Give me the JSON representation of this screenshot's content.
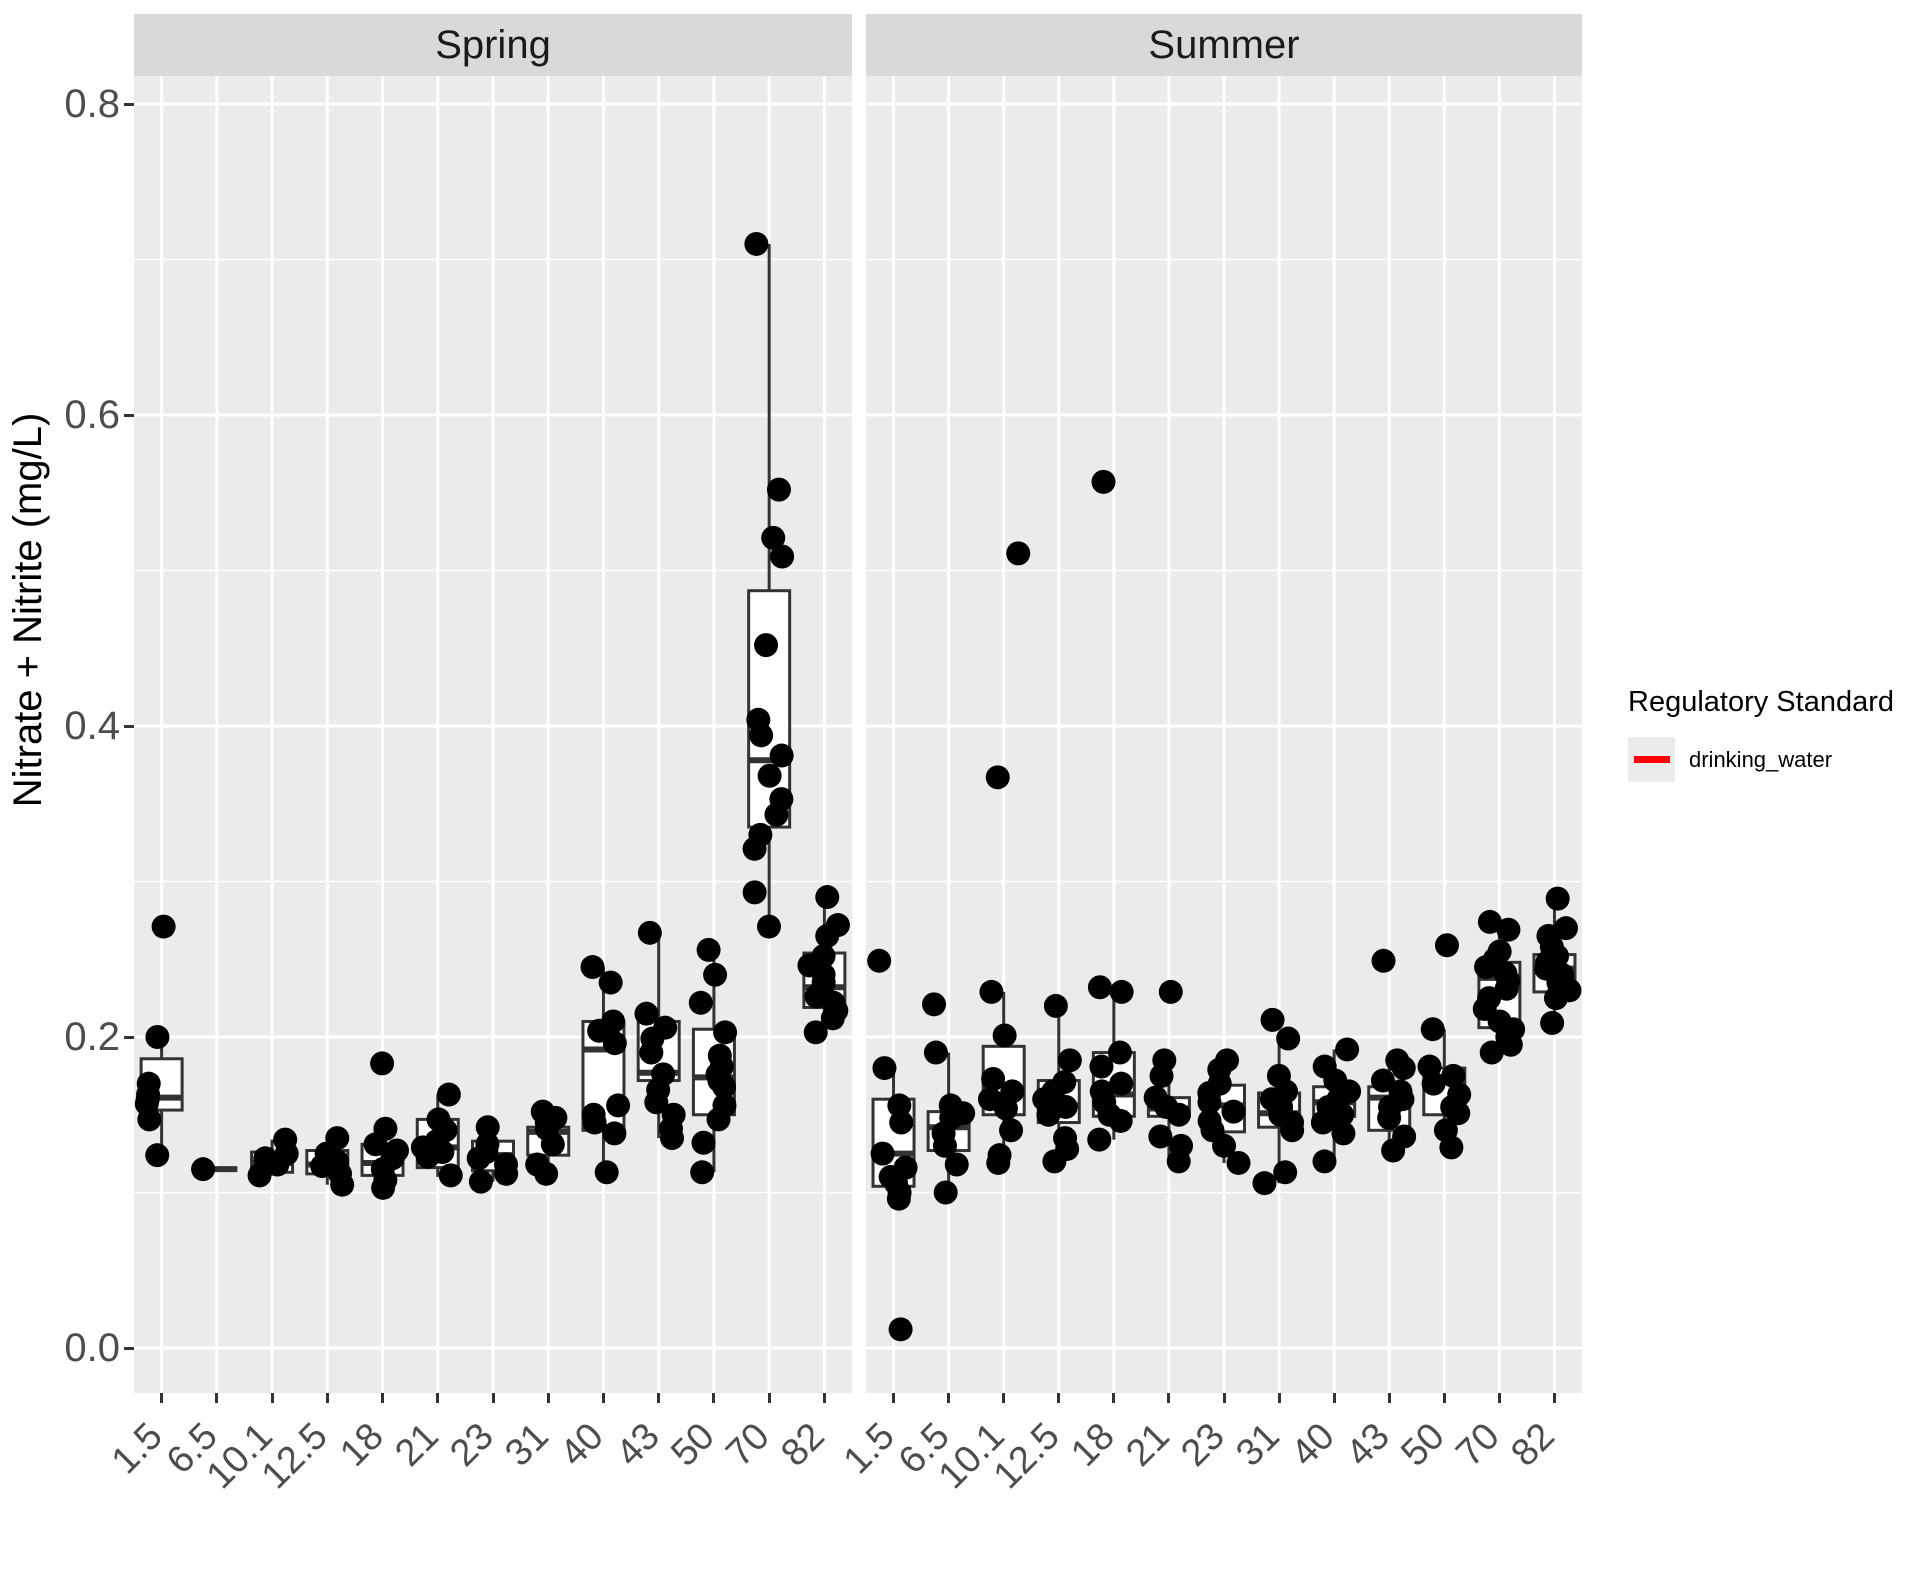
{
  "chart_data": {
    "type": "boxplot",
    "subtype": "faceted boxplot with jittered points",
    "ylabel": "Nitrate + Nitrite (mg/L)",
    "xlabel": "",
    "yticks": [
      "0.0",
      "0.2",
      "0.4",
      "0.6",
      "0.8"
    ],
    "ytick_values": [
      0.0,
      0.2,
      0.4,
      0.6,
      0.8
    ],
    "ylim": [
      -0.029,
      0.822
    ],
    "grid": "white major and minor gridlines on grey panel",
    "categories": [
      "1.5",
      "6.5",
      "10.1",
      "12.5",
      "18",
      "21",
      "23",
      "31",
      "40",
      "43",
      "50",
      "70",
      "82"
    ],
    "colors": {
      "panel_bg": "#ebebeb",
      "strip_bg": "#d9d9d9",
      "grid": "#ffffff",
      "box_fill": "#ffffff",
      "box_border": "#333333",
      "point": "#000000",
      "axis_text": "#4d4d4d",
      "tick_mark": "#333333"
    },
    "legend": {
      "title": "Regulatory Standard",
      "position": "right",
      "entries": [
        {
          "label": "drinking_water",
          "color": "#ff0000",
          "swatch": "red horizontal line"
        }
      ]
    },
    "facets": [
      {
        "label": "Spring",
        "boxes": [
          {
            "category": "1.5",
            "whisker_low": 0.124,
            "q1": 0.153,
            "median": 0.161,
            "q3": 0.186,
            "whisker_high": 0.2,
            "points": [
              0.271,
              0.2,
              0.17,
              0.163,
              0.16,
              0.157,
              0.147,
              0.124
            ]
          },
          {
            "category": "6.5",
            "whisker_low": 0.115,
            "q1": 0.115,
            "median": 0.115,
            "q3": 0.115,
            "whisker_high": 0.115,
            "points": [
              0.115
            ]
          },
          {
            "category": "10.1",
            "whisker_low": 0.111,
            "q1": 0.113,
            "median": 0.119,
            "q3": 0.126,
            "whisker_high": 0.134,
            "points": [
              0.134,
              0.125,
              0.122,
              0.118,
              0.111
            ]
          },
          {
            "category": "12.5",
            "whisker_low": 0.105,
            "q1": 0.112,
            "median": 0.118,
            "q3": 0.127,
            "whisker_high": 0.135,
            "points": [
              0.135,
              0.125,
              0.12,
              0.117,
              0.112,
              0.105
            ]
          },
          {
            "category": "18",
            "whisker_low": 0.102,
            "q1": 0.111,
            "median": 0.119,
            "q3": 0.131,
            "whisker_high": 0.142,
            "points": [
              0.183,
              0.141,
              0.131,
              0.127,
              0.122,
              0.115,
              0.108,
              0.103
            ]
          },
          {
            "category": "21",
            "whisker_low": 0.11,
            "q1": 0.116,
            "median": 0.129,
            "q3": 0.147,
            "whisker_high": 0.163,
            "points": [
              0.163,
              0.147,
              0.14,
              0.133,
              0.129,
              0.126,
              0.123,
              0.111
            ]
          },
          {
            "category": "23",
            "whisker_low": 0.107,
            "q1": 0.114,
            "median": 0.124,
            "q3": 0.133,
            "whisker_high": 0.142,
            "points": [
              0.142,
              0.131,
              0.126,
              0.122,
              0.118,
              0.112,
              0.107
            ]
          },
          {
            "category": "31",
            "whisker_low": 0.112,
            "q1": 0.124,
            "median": 0.139,
            "q3": 0.142,
            "whisker_high": 0.152,
            "points": [
              0.152,
              0.148,
              0.145,
              0.141,
              0.131,
              0.118,
              0.112
            ]
          },
          {
            "category": "40",
            "whisker_low": 0.113,
            "q1": 0.14,
            "median": 0.192,
            "q3": 0.21,
            "whisker_high": 0.245,
            "points": [
              0.245,
              0.235,
              0.21,
              0.204,
              0.196,
              0.156,
              0.15,
              0.145,
              0.138,
              0.113
            ]
          },
          {
            "category": "43",
            "whisker_low": 0.135,
            "q1": 0.172,
            "median": 0.177,
            "q3": 0.21,
            "whisker_high": 0.267,
            "points": [
              0.267,
              0.215,
              0.206,
              0.199,
              0.19,
              0.176,
              0.166,
              0.158,
              0.15,
              0.141,
              0.135
            ]
          },
          {
            "category": "50",
            "whisker_low": 0.113,
            "q1": 0.15,
            "median": 0.174,
            "q3": 0.205,
            "whisker_high": 0.256,
            "points": [
              0.256,
              0.24,
              0.222,
              0.203,
              0.188,
              0.181,
              0.176,
              0.172,
              0.168,
              0.156,
              0.147,
              0.132,
              0.113
            ]
          },
          {
            "category": "70",
            "whisker_low": 0.269,
            "q1": 0.335,
            "median": 0.378,
            "q3": 0.487,
            "whisker_high": 0.71,
            "points": [
              0.71,
              0.552,
              0.521,
              0.509,
              0.452,
              0.404,
              0.394,
              0.381,
              0.368,
              0.353,
              0.343,
              0.33,
              0.321,
              0.293,
              0.271
            ]
          },
          {
            "category": "82",
            "whisker_low": 0.203,
            "q1": 0.219,
            "median": 0.232,
            "q3": 0.254,
            "whisker_high": 0.29,
            "points": [
              0.29,
              0.272,
              0.265,
              0.252,
              0.246,
              0.24,
              0.235,
              0.23,
              0.226,
              0.222,
              0.217,
              0.212,
              0.203
            ]
          }
        ]
      },
      {
        "label": "Summer",
        "boxes": [
          {
            "category": "1.5",
            "whisker_low": 0.096,
            "q1": 0.104,
            "median": 0.125,
            "q3": 0.16,
            "whisker_high": 0.18,
            "points": [
              0.249,
              0.18,
              0.156,
              0.145,
              0.125,
              0.116,
              0.11,
              0.106,
              0.1,
              0.096,
              0.012
            ]
          },
          {
            "category": "6.5",
            "whisker_low": 0.1,
            "q1": 0.127,
            "median": 0.142,
            "q3": 0.152,
            "whisker_high": 0.19,
            "points": [
              0.221,
              0.19,
              0.156,
              0.151,
              0.148,
              0.138,
              0.13,
              0.118,
              0.1
            ]
          },
          {
            "category": "10.1",
            "whisker_low": 0.124,
            "q1": 0.15,
            "median": 0.163,
            "q3": 0.194,
            "whisker_high": 0.229,
            "points": [
              0.511,
              0.367,
              0.229,
              0.201,
              0.173,
              0.165,
              0.16,
              0.154,
              0.14,
              0.124,
              0.119
            ]
          },
          {
            "category": "12.5",
            "whisker_low": 0.12,
            "q1": 0.145,
            "median": 0.156,
            "q3": 0.172,
            "whisker_high": 0.22,
            "points": [
              0.22,
              0.185,
              0.171,
              0.165,
              0.16,
              0.155,
              0.15,
              0.135,
              0.128,
              0.12
            ]
          },
          {
            "category": "18",
            "whisker_low": 0.134,
            "q1": 0.149,
            "median": 0.163,
            "q3": 0.19,
            "whisker_high": 0.232,
            "points": [
              0.557,
              0.232,
              0.229,
              0.19,
              0.181,
              0.17,
              0.165,
              0.158,
              0.15,
              0.146,
              0.134
            ]
          },
          {
            "category": "21",
            "whisker_low": 0.12,
            "q1": 0.149,
            "median": 0.154,
            "q3": 0.161,
            "whisker_high": 0.185,
            "points": [
              0.229,
              0.185,
              0.175,
              0.161,
              0.155,
              0.15,
              0.136,
              0.13,
              0.12
            ]
          },
          {
            "category": "23",
            "whisker_low": 0.119,
            "q1": 0.139,
            "median": 0.156,
            "q3": 0.169,
            "whisker_high": 0.185,
            "points": [
              0.185,
              0.179,
              0.17,
              0.164,
              0.158,
              0.152,
              0.146,
              0.14,
              0.13,
              0.119
            ]
          },
          {
            "category": "31",
            "whisker_low": 0.106,
            "q1": 0.142,
            "median": 0.151,
            "q3": 0.164,
            "whisker_high": 0.199,
            "points": [
              0.211,
              0.199,
              0.175,
              0.165,
              0.16,
              0.155,
              0.15,
              0.145,
              0.14,
              0.113,
              0.106
            ]
          },
          {
            "category": "40",
            "whisker_low": 0.12,
            "q1": 0.149,
            "median": 0.158,
            "q3": 0.168,
            "whisker_high": 0.192,
            "points": [
              0.192,
              0.181,
              0.172,
              0.165,
              0.16,
              0.155,
              0.15,
              0.145,
              0.138,
              0.12
            ]
          },
          {
            "category": "43",
            "whisker_low": 0.127,
            "q1": 0.14,
            "median": 0.161,
            "q3": 0.168,
            "whisker_high": 0.185,
            "points": [
              0.249,
              0.185,
              0.18,
              0.172,
              0.165,
              0.16,
              0.155,
              0.148,
              0.136,
              0.127
            ]
          },
          {
            "category": "50",
            "whisker_low": 0.129,
            "q1": 0.15,
            "median": 0.174,
            "q3": 0.18,
            "whisker_high": 0.205,
            "points": [
              0.259,
              0.205,
              0.181,
              0.175,
              0.17,
              0.163,
              0.155,
              0.151,
              0.14,
              0.129
            ]
          },
          {
            "category": "70",
            "whisker_low": 0.19,
            "q1": 0.206,
            "median": 0.238,
            "q3": 0.248,
            "whisker_high": 0.274,
            "points": [
              0.274,
              0.269,
              0.255,
              0.25,
              0.245,
              0.241,
              0.236,
              0.231,
              0.225,
              0.218,
              0.21,
              0.205,
              0.2,
              0.195,
              0.19
            ]
          },
          {
            "category": "82",
            "whisker_low": 0.209,
            "q1": 0.229,
            "median": 0.244,
            "q3": 0.253,
            "whisker_high": 0.289,
            "points": [
              0.289,
              0.27,
              0.265,
              0.258,
              0.252,
              0.248,
              0.244,
              0.24,
              0.235,
              0.23,
              0.225,
              0.209
            ]
          }
        ]
      }
    ]
  }
}
